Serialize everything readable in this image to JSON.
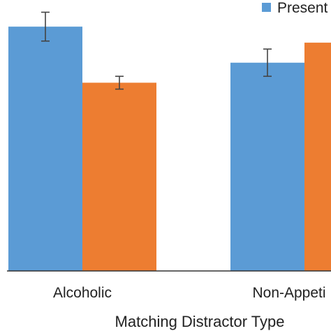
{
  "chart_data": {
    "type": "bar",
    "title": "",
    "xlabel": "Matching Distractor Type",
    "ylabel": "",
    "categories": [
      "Alcoholic",
      "Non-Appeti"
    ],
    "series": [
      {
        "name": "Present",
        "color": "#5b9bd5",
        "values": [
          3.05,
          2.6
        ],
        "errors": [
          0.18,
          0.17
        ]
      },
      {
        "name": "",
        "color": "#ed7d31",
        "values": [
          2.35,
          2.85
        ],
        "errors": [
          0.08,
          0.0
        ]
      }
    ],
    "ylim": [
      0,
      3.4
    ],
    "grid": false,
    "legend_position": "top-right"
  }
}
